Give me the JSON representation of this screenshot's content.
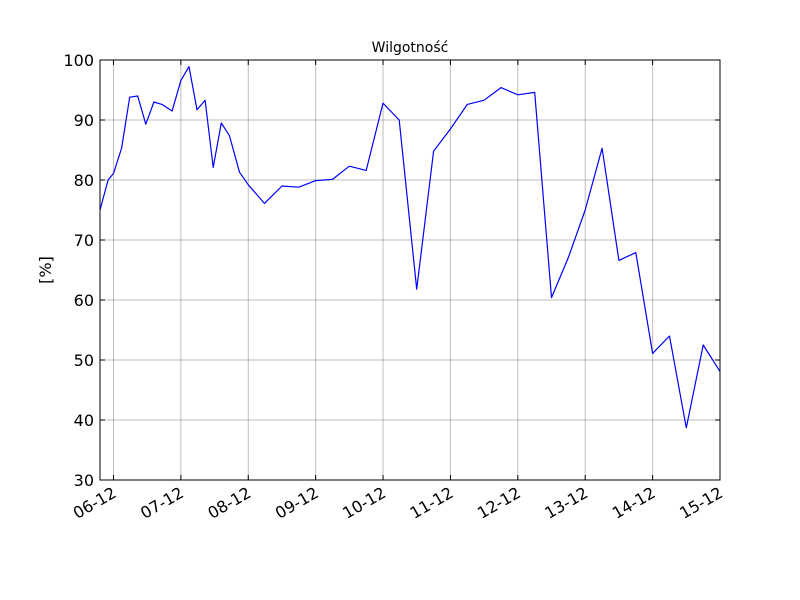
{
  "chart_data": {
    "type": "line",
    "title": "Wilgotność",
    "xlabel": "",
    "ylabel": "[%]",
    "ylim": [
      30,
      100
    ],
    "xlim": [
      5.8,
      15.0
    ],
    "yticks": [
      30,
      40,
      50,
      60,
      70,
      80,
      90,
      100
    ],
    "xticks": [
      {
        "pos": 6,
        "label": "06-12"
      },
      {
        "pos": 7,
        "label": "07-12"
      },
      {
        "pos": 8,
        "label": "08-12"
      },
      {
        "pos": 9,
        "label": "09-12"
      },
      {
        "pos": 10,
        "label": "10-12"
      },
      {
        "pos": 11,
        "label": "11-12"
      },
      {
        "pos": 12,
        "label": "12-12"
      },
      {
        "pos": 13,
        "label": "13-12"
      },
      {
        "pos": 14,
        "label": "14-12"
      },
      {
        "pos": 15,
        "label": "15-12"
      }
    ],
    "grid": true,
    "color": "#0000ff",
    "series": [
      {
        "x": [
          5.8,
          5.92,
          6.0,
          6.12,
          6.24,
          6.36,
          6.48,
          6.6,
          6.72,
          6.87,
          7.0,
          7.12,
          7.24,
          7.36,
          7.48,
          7.6,
          7.72,
          7.87,
          8.0,
          8.24,
          8.5,
          8.75,
          9.0,
          9.25,
          9.5,
          9.75,
          10.0,
          10.24,
          10.5,
          10.75,
          11.0,
          11.25,
          11.5,
          11.75,
          12.0,
          12.25,
          12.5,
          12.75,
          13.0,
          13.25,
          13.5,
          13.75,
          14.0,
          14.25,
          14.5,
          14.75,
          15.0
        ],
        "y": [
          75.0,
          80.0,
          81.1,
          85.3,
          93.8,
          94.0,
          89.3,
          93.0,
          92.6,
          91.5,
          96.6,
          98.9,
          91.7,
          93.3,
          82.1,
          89.5,
          87.4,
          81.3,
          79.2,
          76.1,
          79.0,
          78.8,
          79.9,
          80.1,
          82.3,
          81.6,
          92.8,
          90.0,
          61.8,
          84.8,
          88.5,
          92.6,
          93.3,
          95.4,
          94.2,
          94.6,
          60.4,
          67.1,
          75.0,
          85.3,
          66.6,
          67.9,
          51.1,
          54.0,
          38.7,
          52.5,
          48.1
        ]
      }
    ]
  }
}
